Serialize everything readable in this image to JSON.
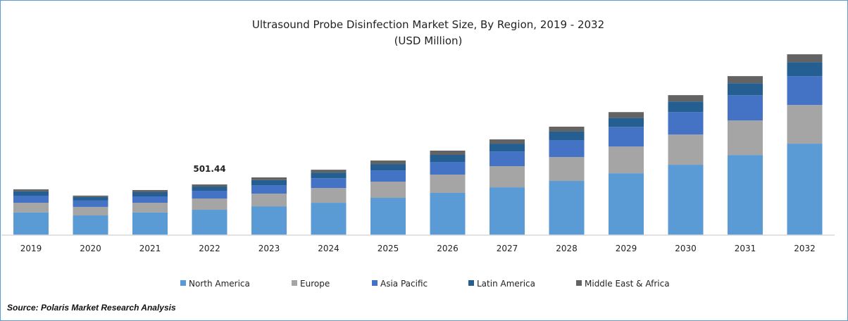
{
  "chart_data": {
    "type": "bar",
    "stacked": true,
    "title": "Ultrasound Probe Disinfection Market Size, By Region, 2019 - 2032",
    "subtitle": "(USD Million)",
    "xlabel": "",
    "ylabel": "",
    "ylim": [
      0,
      1900
    ],
    "grid": false,
    "legend_position": "bottom",
    "categories": [
      "2019",
      "2020",
      "2021",
      "2022",
      "2023",
      "2024",
      "2025",
      "2026",
      "2027",
      "2028",
      "2029",
      "2030",
      "2031",
      "2032"
    ],
    "series": [
      {
        "name": "North America",
        "color": "#5b9bd5",
        "values": [
          225,
          195,
          225,
          250.6,
          285,
          320,
          369,
          418,
          473,
          536,
          612,
          696,
          793,
          905
        ]
      },
      {
        "name": "Europe",
        "color": "#a5a5a5",
        "values": [
          95,
          84,
          95,
          111.4,
          125,
          146,
          160,
          181,
          209,
          237,
          264,
          299,
          341,
          383
        ]
      },
      {
        "name": "Asia Pacific",
        "color": "#4472c4",
        "values": [
          70,
          63,
          63,
          76.5,
          84,
          97,
          111,
          125,
          146,
          167,
          195,
          223,
          251,
          285
        ]
      },
      {
        "name": "Latin America",
        "color": "#255e91",
        "values": [
          44,
          35,
          42,
          41.8,
          51,
          56,
          63,
          70,
          77,
          84,
          90,
          104,
          118,
          139
        ]
      },
      {
        "name": "Middle East & Africa",
        "color": "#636363",
        "values": [
          19,
          14,
          21,
          21.14,
          26,
          28,
          35,
          42,
          42,
          49,
          56,
          63,
          70,
          77
        ]
      }
    ],
    "annotations": [
      {
        "category": "2022",
        "text": "501.44"
      }
    ],
    "source": "Source: Polaris  Market Research Analysis"
  }
}
